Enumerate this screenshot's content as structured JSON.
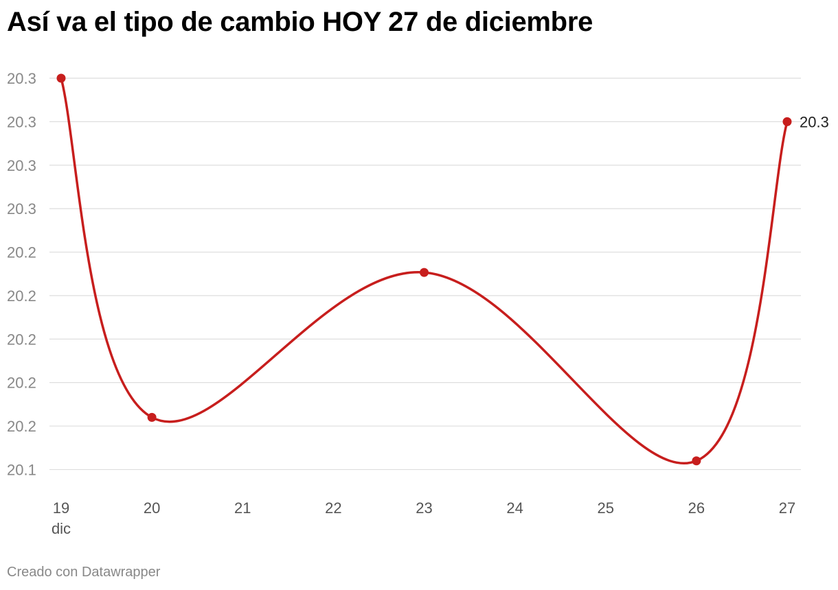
{
  "chart_data": {
    "type": "line",
    "title": "Así va el tipo de cambio HOY 27 de diciembre",
    "x": [
      19,
      20,
      23,
      26,
      27
    ],
    "x_ticks": [
      "19",
      "20",
      "21",
      "22",
      "23",
      "24",
      "25",
      "26",
      "27"
    ],
    "x_first_tick_sublabel": "dic",
    "y_tick_labels": [
      "20.3",
      "20.3",
      "20.3",
      "20.3",
      "20.2",
      "20.2",
      "20.2",
      "20.2",
      "20.2",
      "20.1"
    ],
    "y_tick_values": [
      20.285,
      20.27,
      20.255,
      20.24,
      20.225,
      20.21,
      20.195,
      20.18,
      20.165,
      20.15
    ],
    "series": [
      {
        "values": [
          20.285,
          20.168,
          20.218,
          20.153,
          20.27
        ]
      }
    ],
    "ylim": [
      20.143,
      20.285
    ],
    "end_label": "20.3",
    "grid": true,
    "line_color": "#c71e1d"
  },
  "credit": "Creado con Datawrapper"
}
